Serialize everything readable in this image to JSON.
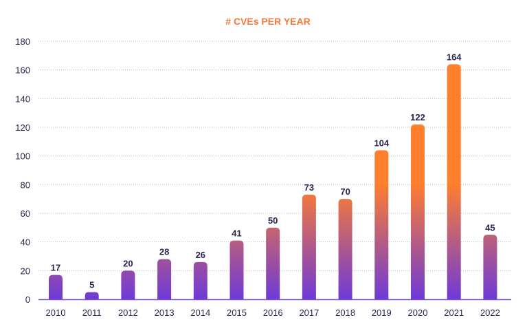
{
  "colors": {
    "title": "#f47a3b",
    "bar_top": "#ff7f2e",
    "bar_bottom": "#6e3ad6",
    "axis": "#7a4fd0",
    "grid": "#b7b7c2",
    "text": "#2b2450"
  },
  "chart_data": {
    "type": "bar",
    "title": "# CVEs PER YEAR",
    "xlabel": "",
    "ylabel": "",
    "ylim": [
      0,
      180
    ],
    "yticks": [
      0,
      20,
      40,
      60,
      80,
      100,
      120,
      140,
      160,
      180
    ],
    "grid": true,
    "legend": "none",
    "categories": [
      "2010",
      "2011",
      "2012",
      "2013",
      "2014",
      "2015",
      "2016",
      "2017",
      "2018",
      "2019",
      "2020",
      "2021",
      "2022"
    ],
    "values": [
      17,
      5,
      20,
      28,
      26,
      41,
      50,
      73,
      70,
      104,
      122,
      164,
      45
    ]
  }
}
